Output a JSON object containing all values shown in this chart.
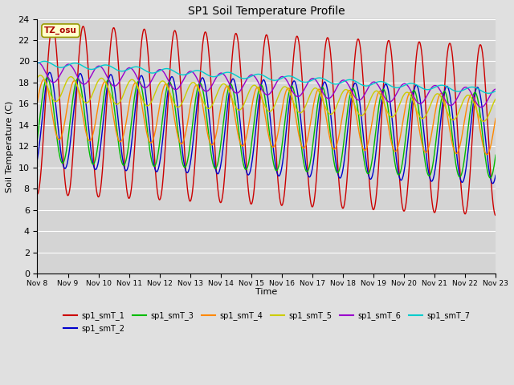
{
  "title": "SP1 Soil Temperature Profile",
  "xlabel": "Time",
  "ylabel": "Soil Temperature (C)",
  "ylim": [
    0,
    24
  ],
  "yticks": [
    0,
    2,
    4,
    6,
    8,
    10,
    12,
    14,
    16,
    18,
    20,
    22,
    24
  ],
  "series": [
    {
      "name": "sp1_smT_1",
      "color": "#cc0000"
    },
    {
      "name": "sp1_smT_2",
      "color": "#0000cc"
    },
    {
      "name": "sp1_smT_3",
      "color": "#00bb00"
    },
    {
      "name": "sp1_smT_4",
      "color": "#ff8800"
    },
    {
      "name": "sp1_smT_5",
      "color": "#cccc00"
    },
    {
      "name": "sp1_smT_6",
      "color": "#9900cc"
    },
    {
      "name": "sp1_smT_7",
      "color": "#00cccc"
    }
  ],
  "tz_label": "TZ_osu",
  "bg_color": "#e0e0e0",
  "plot_bg_color": "#d4d4d4",
  "grid_color": "#ffffff",
  "figsize": [
    6.4,
    4.8
  ],
  "dpi": 100
}
